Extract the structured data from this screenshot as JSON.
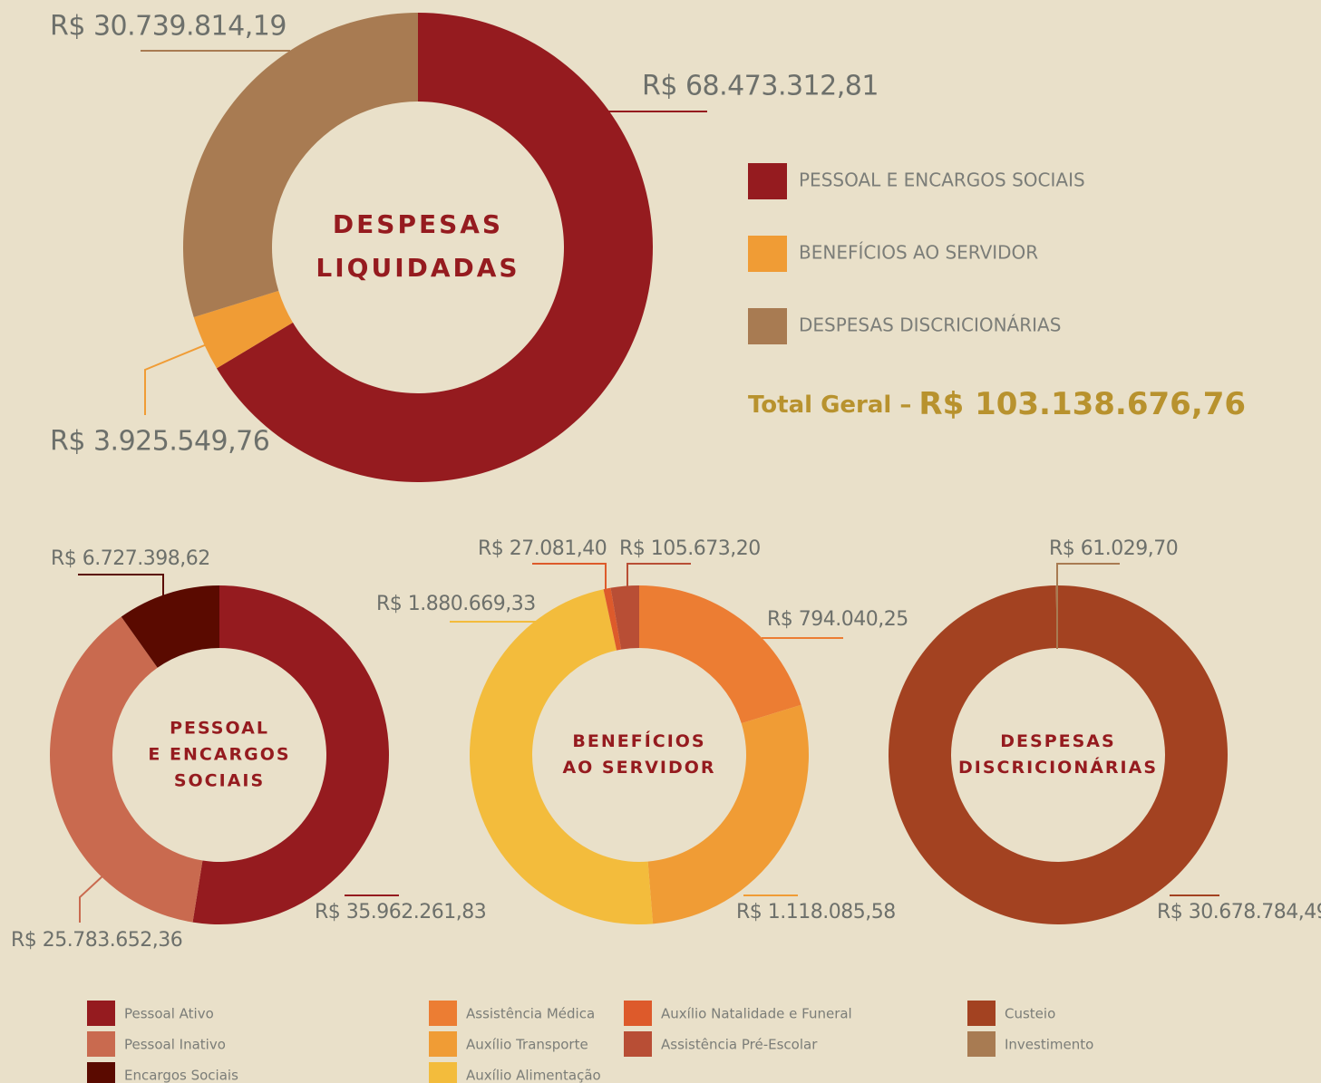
{
  "chart_data": [
    {
      "type": "pie",
      "donut": true,
      "title": [
        "DESPESAS",
        "LIQUIDADAS"
      ],
      "categories": [
        "PESSOAL E ENCARGOS SOCIAIS",
        "BENEFÍCIOS AO SERVIDOR",
        "DESPESAS DISCRICIONÁRIAS"
      ],
      "values": [
        68473312.81,
        3925549.76,
        30739814.19
      ],
      "value_labels": [
        "R$ 68.473.312,81",
        "R$ 3.925.549,76",
        "R$ 30.739.814,19"
      ],
      "colors": [
        "#951b1f",
        "#f09c35",
        "#a87b52"
      ],
      "total": {
        "label": "Total Geral –",
        "value_label": "R$ 103.138.676,76"
      }
    },
    {
      "type": "pie",
      "donut": true,
      "title": [
        "PESSOAL",
        "E ENCARGOS",
        "SOCIAIS"
      ],
      "categories": [
        "Pessoal Ativo",
        "Pessoal Inativo",
        "Encargos Sociais"
      ],
      "values": [
        35962261.83,
        25783652.36,
        6727398.62
      ],
      "value_labels": [
        "R$ 35.962.261,83",
        "R$ 25.783.652,36",
        "R$ 6.727.398,62"
      ],
      "colors": [
        "#951b1f",
        "#c96a4f",
        "#5a0a00"
      ]
    },
    {
      "type": "pie",
      "donut": true,
      "title": [
        "BENEFÍCIOS",
        "AO SERVIDOR"
      ],
      "categories": [
        "Assistência Médica",
        "Auxílio Transporte",
        "Auxílio Alimentação",
        "Auxílio Natalidade e Funeral",
        "Assistência Pré-Escolar"
      ],
      "values": [
        794040.25,
        1118085.58,
        1880669.33,
        27081.4,
        105673.2
      ],
      "value_labels": [
        "R$ 794.040,25",
        "R$ 1.118.085,58",
        "R$ 1.880.669,33",
        "R$ 27.081,40",
        "R$ 105.673,20"
      ],
      "colors": [
        "#ec7d33",
        "#f09c35",
        "#f3bc3c",
        "#dd5a2b",
        "#b84e35"
      ]
    },
    {
      "type": "pie",
      "donut": true,
      "title": [
        "DESPESAS",
        "DISCRICIONÁRIAS"
      ],
      "categories": [
        "Custeio",
        "Investimento"
      ],
      "values": [
        30678784.49,
        61029.7
      ],
      "value_labels": [
        "R$ 30.678.784,49",
        "R$ 61.029,70"
      ],
      "colors": [
        "#a34221",
        "#a87b52"
      ]
    }
  ]
}
